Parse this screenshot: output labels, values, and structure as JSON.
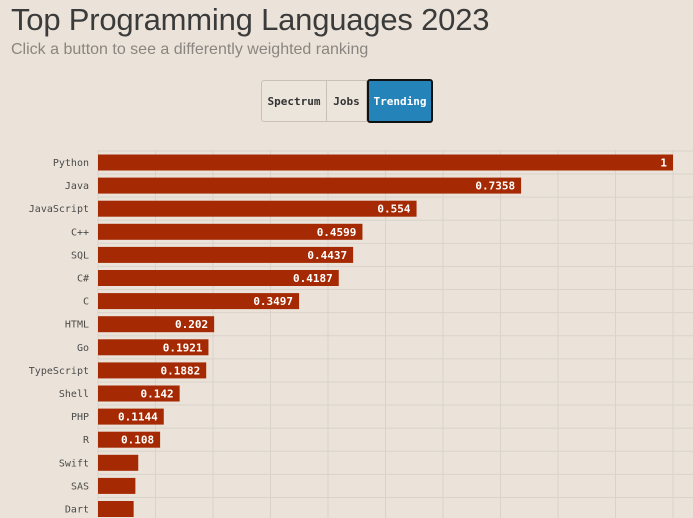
{
  "header": {
    "title": "Top Programming Languages 2023",
    "subtitle": "Click a button to see a differently weighted ranking"
  },
  "buttons": {
    "spectrum": "Spectrum",
    "jobs": "Jobs",
    "trending": "Trending",
    "active": "trending"
  },
  "colors": {
    "bar": "#a52a03",
    "background": "#ebe3d9",
    "grid": "#d9d3cc",
    "active_button": "#2484b9"
  },
  "chart_data": {
    "type": "bar",
    "orientation": "horizontal",
    "title": "Top Programming Languages 2023",
    "xlim": [
      0,
      1
    ],
    "grid": true,
    "categories": [
      "Python",
      "Java",
      "JavaScript",
      "C++",
      "SQL",
      "C#",
      "C",
      "HTML",
      "Go",
      "TypeScript",
      "Shell",
      "PHP",
      "R",
      "Swift",
      "SAS",
      "Dart"
    ],
    "values": [
      1,
      0.7358,
      0.554,
      0.4599,
      0.4437,
      0.4187,
      0.3497,
      0.202,
      0.1921,
      0.1882,
      0.142,
      0.1144,
      0.108,
      0.07,
      0.065,
      0.062
    ],
    "labels": [
      "1",
      "0.7358",
      "0.554",
      "0.4599",
      "0.4437",
      "0.4187",
      "0.3497",
      "0.202",
      "0.1921",
      "0.1882",
      "0.142",
      "0.1144",
      "0.108",
      "",
      "",
      ""
    ]
  }
}
